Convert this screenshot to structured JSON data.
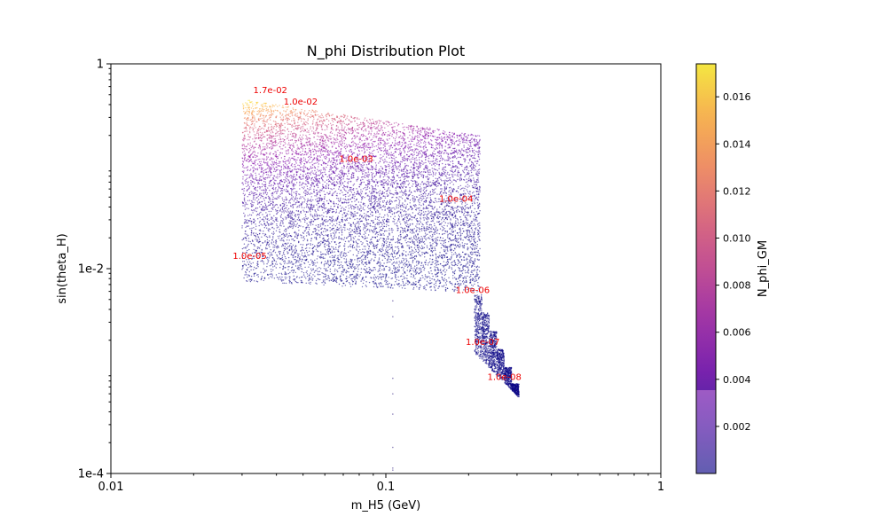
{
  "chart_data": {
    "type": "scatter",
    "title": "N_phi Distribution Plot",
    "xlabel": "m_H5 (GeV)",
    "ylabel": "sin(theta_H)",
    "xscale": "log",
    "yscale": "log",
    "xlim": [
      0.01,
      1
    ],
    "ylim": [
      0.0001,
      1
    ],
    "xticks": [
      {
        "value": 0.01,
        "label": "0.01"
      },
      {
        "value": 0.1,
        "label": "0.1"
      },
      {
        "value": 1,
        "label": "1"
      }
    ],
    "yticks": [
      {
        "value": 0.0001,
        "label": "1e-4"
      },
      {
        "value": 0.01,
        "label": "1e-2"
      },
      {
        "value": 1,
        "label": "1"
      }
    ],
    "grid": false,
    "colormap": "plasma",
    "colorbar": {
      "label": "N_phi_GM",
      "range": [
        0.0,
        0.0174
      ],
      "ticks": [
        {
          "value": 0.002,
          "label": "0.002"
        },
        {
          "value": 0.004,
          "label": "0.004"
        },
        {
          "value": 0.006,
          "label": "0.006"
        },
        {
          "value": 0.008,
          "label": "0.008"
        },
        {
          "value": 0.01,
          "label": "0.010"
        },
        {
          "value": 0.012,
          "label": "0.012"
        },
        {
          "value": 0.014,
          "label": "0.014"
        },
        {
          "value": 0.016,
          "label": "0.016"
        }
      ]
    },
    "regions": [
      {
        "name": "upper-band",
        "x_range": [
          0.03,
          0.22
        ],
        "y_top": [
          0.45,
          0.2
        ],
        "y_bottom": [
          0.0075,
          0.0058
        ]
      },
      {
        "name": "lower-tail",
        "x_range": [
          0.21,
          0.305
        ],
        "y_top": [
          0.0058,
          0.00075
        ],
        "y_bottom": [
          0.00058,
          0.00055
        ]
      }
    ],
    "outlier_points": [
      {
        "x": 0.106,
        "y": 0.00485
      },
      {
        "x": 0.106,
        "y": 0.0034
      },
      {
        "x": 0.106,
        "y": 0.00085
      },
      {
        "x": 0.106,
        "y": 0.0006
      },
      {
        "x": 0.106,
        "y": 0.00038
      },
      {
        "x": 0.106,
        "y": 0.00018
      },
      {
        "x": 0.106,
        "y": 0.000113
      },
      {
        "x": 0.106,
        "y": 0.000108
      }
    ],
    "annotations": [
      {
        "x": 0.038,
        "y": 0.52,
        "text": "1.7e-02"
      },
      {
        "x": 0.049,
        "y": 0.4,
        "text": "1.0e-02"
      },
      {
        "x": 0.078,
        "y": 0.11,
        "text": "1.0e-03"
      },
      {
        "x": 0.18,
        "y": 0.045,
        "text": "1.0e-04"
      },
      {
        "x": 0.032,
        "y": 0.0125,
        "text": "1.0e-05"
      },
      {
        "x": 0.207,
        "y": 0.0058,
        "text": "1.0e-06"
      },
      {
        "x": 0.225,
        "y": 0.0018,
        "text": "1.0e-07"
      },
      {
        "x": 0.27,
        "y": 0.00082,
        "text": "1.0e-08"
      }
    ]
  }
}
